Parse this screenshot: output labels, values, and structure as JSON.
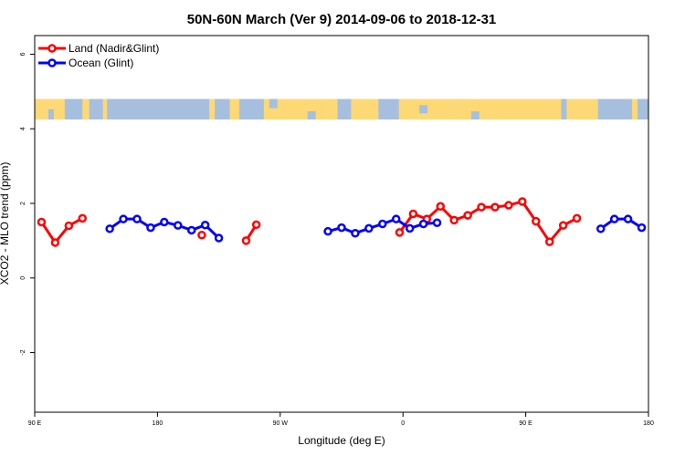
{
  "chart_data": {
    "type": "line",
    "title": "50N-60N March (Ver 9)   2014-09-06 to 2018-12-31",
    "xlabel": "Longitude (deg E)",
    "ylabel": "XCO2 - MLO trend (ppm)",
    "xlim": [
      90,
      540
    ],
    "ylim": [
      -3.6,
      6.5
    ],
    "grid": false,
    "legend_position": "top-left",
    "x_ticks": [
      {
        "value": 90,
        "label": "90 E"
      },
      {
        "value": 180,
        "label": "180"
      },
      {
        "value": 270,
        "label": "90 W"
      },
      {
        "value": 360,
        "label": "0"
      },
      {
        "value": 450,
        "label": "90 E"
      },
      {
        "value": 540,
        "label": "180"
      }
    ],
    "y_ticks": [
      {
        "value": 6,
        "label": "6"
      },
      {
        "value": 4,
        "label": "4"
      },
      {
        "value": 2,
        "label": "2"
      },
      {
        "value": 0,
        "label": "0"
      },
      {
        "value": -2,
        "label": "-2"
      }
    ],
    "map_band": {
      "y_range": [
        4.25,
        4.8
      ],
      "land_color": "#fdd976",
      "ocean_color": "#a7bfdf"
    },
    "series": [
      {
        "name": "Land (Nadir&Glint)",
        "color": "#ff0000",
        "segments": [
          [
            [
              95,
              1.5
            ],
            [
              105,
              0.95
            ],
            [
              115,
              1.4
            ],
            [
              125,
              1.6
            ]
          ],
          [
            [
              212.5,
              1.15
            ]
          ],
          [
            [
              245,
              1.0
            ],
            [
              252.5,
              1.43
            ]
          ],
          [
            [
              357.5,
              1.22
            ],
            [
              367.5,
              1.72
            ],
            [
              377.5,
              1.58
            ],
            [
              387.5,
              1.92
            ],
            [
              397.5,
              1.55
            ],
            [
              407.5,
              1.68
            ],
            [
              417.5,
              1.9
            ],
            [
              427.5,
              1.9
            ],
            [
              437.5,
              1.95
            ],
            [
              447.5,
              2.05
            ],
            [
              457.5,
              1.52
            ],
            [
              467.5,
              0.97
            ],
            [
              477.5,
              1.41
            ],
            [
              487.5,
              1.6
            ]
          ]
        ]
      },
      {
        "name": "Ocean (Glint)",
        "color": "#0000ff",
        "segments": [
          [
            [
              145,
              1.32
            ],
            [
              155,
              1.58
            ],
            [
              165,
              1.58
            ],
            [
              175,
              1.35
            ],
            [
              185,
              1.5
            ],
            [
              195,
              1.41
            ],
            [
              205,
              1.28
            ],
            [
              215,
              1.42
            ],
            [
              225,
              1.07
            ]
          ],
          [
            [
              305,
              1.25
            ],
            [
              315,
              1.35
            ],
            [
              325,
              1.2
            ],
            [
              335,
              1.33
            ],
            [
              345,
              1.45
            ],
            [
              355,
              1.58
            ],
            [
              365,
              1.33
            ],
            [
              375,
              1.45
            ],
            [
              385,
              1.48
            ]
          ],
          [
            [
              505,
              1.32
            ],
            [
              515,
              1.58
            ],
            [
              525,
              1.58
            ],
            [
              535,
              1.35
            ]
          ]
        ]
      }
    ]
  }
}
